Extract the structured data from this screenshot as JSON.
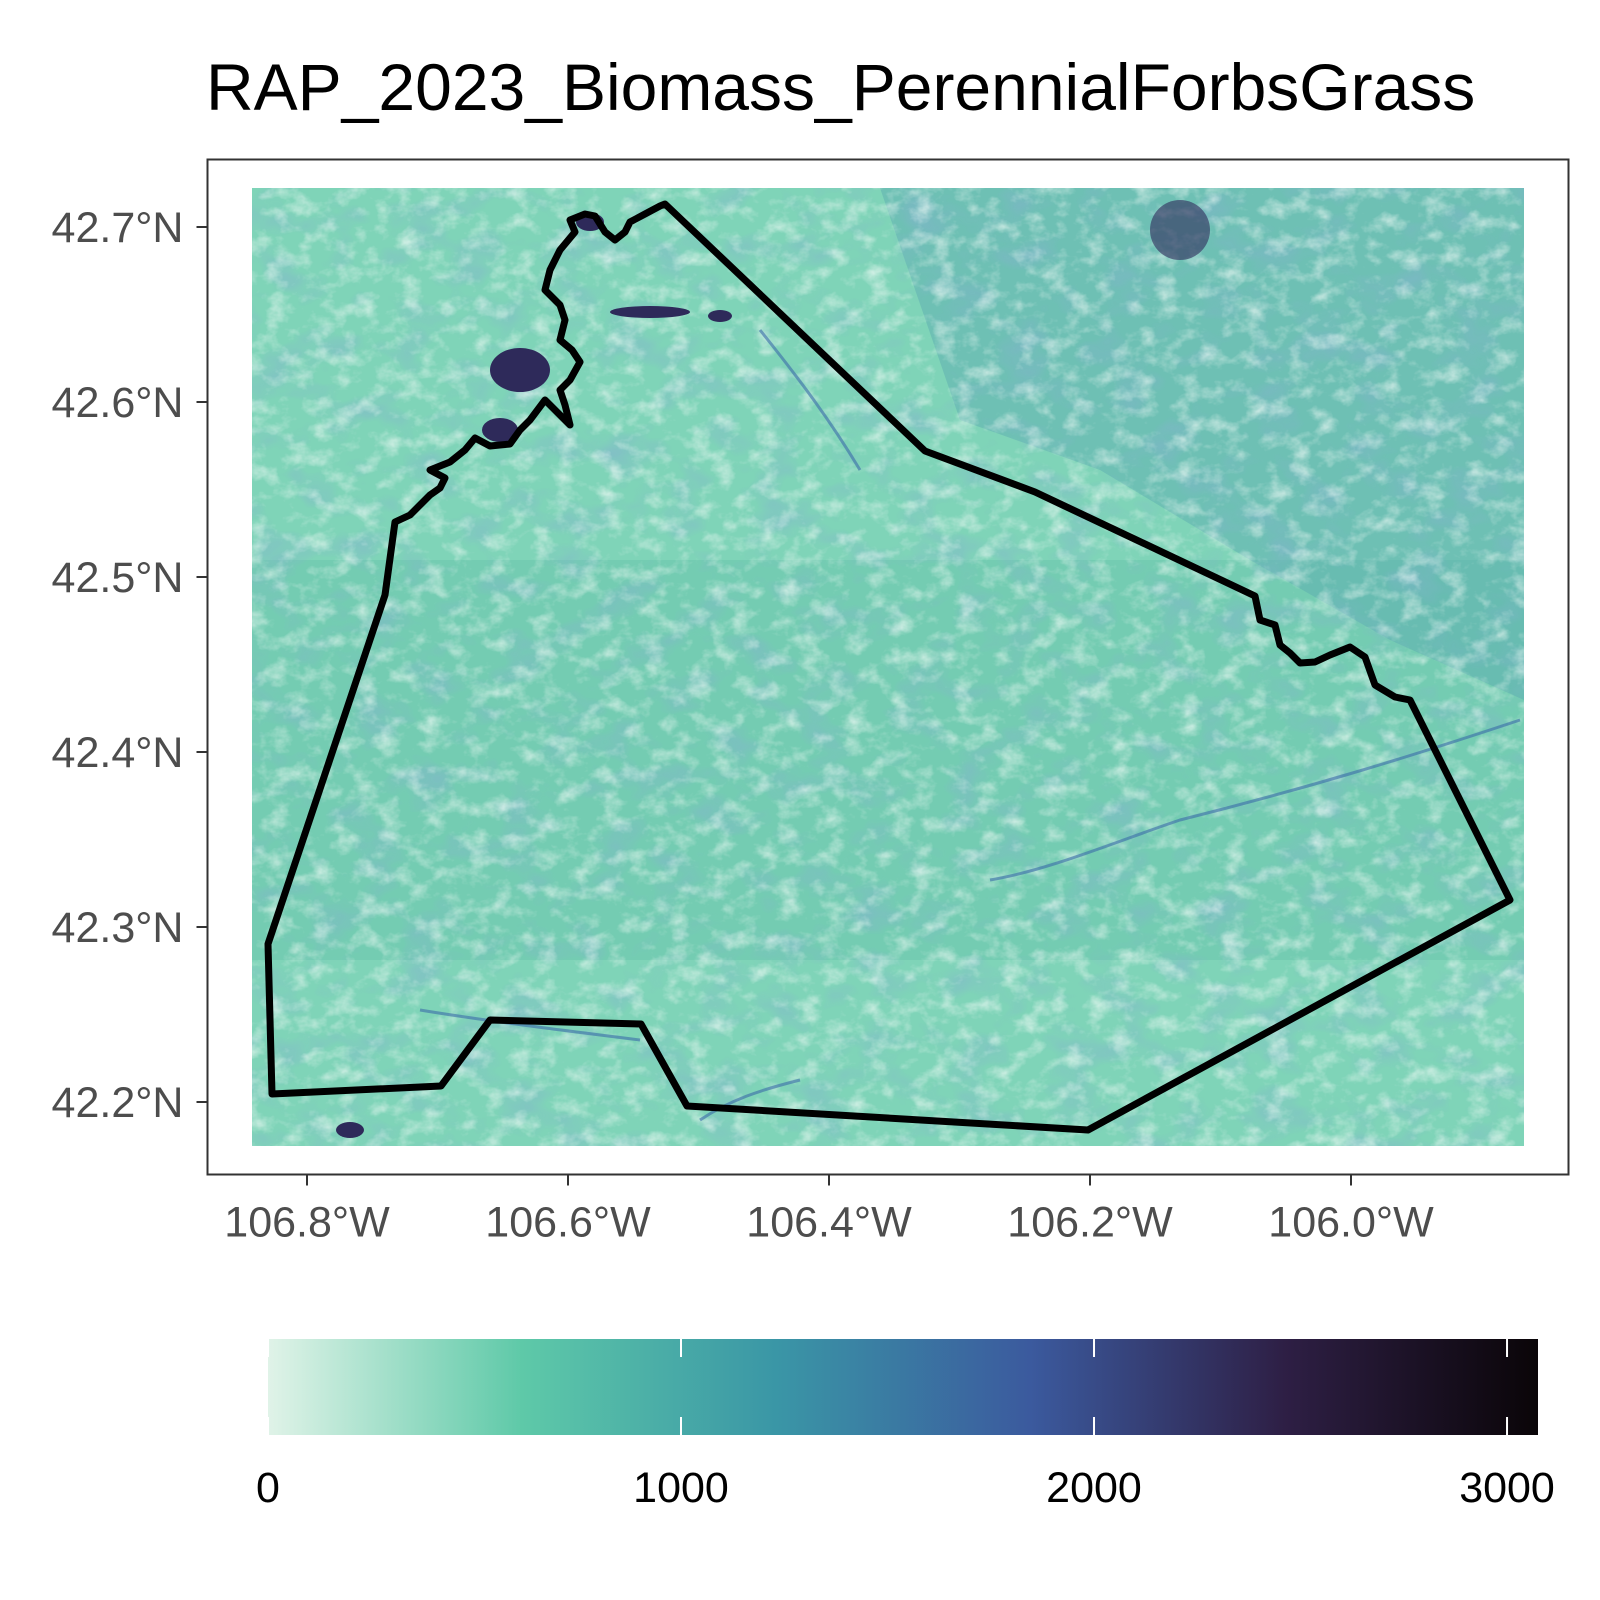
{
  "map": {
    "title": "RAP_2023_Biomass_PerennialForbsGrass",
    "x_axis": {
      "ticks": [
        "106.8°W",
        "106.6°W",
        "106.4°W",
        "106.2°W",
        "106.0°W"
      ],
      "tick_values": [
        -106.8,
        -106.6,
        -106.4,
        -106.2,
        -106.0
      ]
    },
    "y_axis": {
      "ticks": [
        "42.2°N",
        "42.3°N",
        "42.4°N",
        "42.5°N",
        "42.6°N",
        "42.7°N"
      ],
      "tick_values": [
        42.2,
        42.3,
        42.4,
        42.5,
        42.6,
        42.7
      ]
    },
    "extent": {
      "lon_range": [
        -106.88,
        -105.83
      ],
      "lat_range": [
        42.18,
        42.72
      ]
    },
    "boundary_color": "#000000",
    "raster_colormap": [
      "#e0f3e8",
      "#5ec9a8",
      "#3a96a6",
      "#3b5a9e",
      "#2e1f45",
      "#0a0508"
    ]
  },
  "legend": {
    "ticks": [
      "0",
      "1000",
      "2000",
      "3000"
    ],
    "tick_values": [
      0,
      1000,
      2000,
      3000
    ],
    "range": [
      0,
      3075
    ],
    "colormap": [
      "#e0f3e8",
      "#5ec9a8",
      "#3a96a6",
      "#3b5a9e",
      "#2e1f45",
      "#0a0508"
    ]
  }
}
